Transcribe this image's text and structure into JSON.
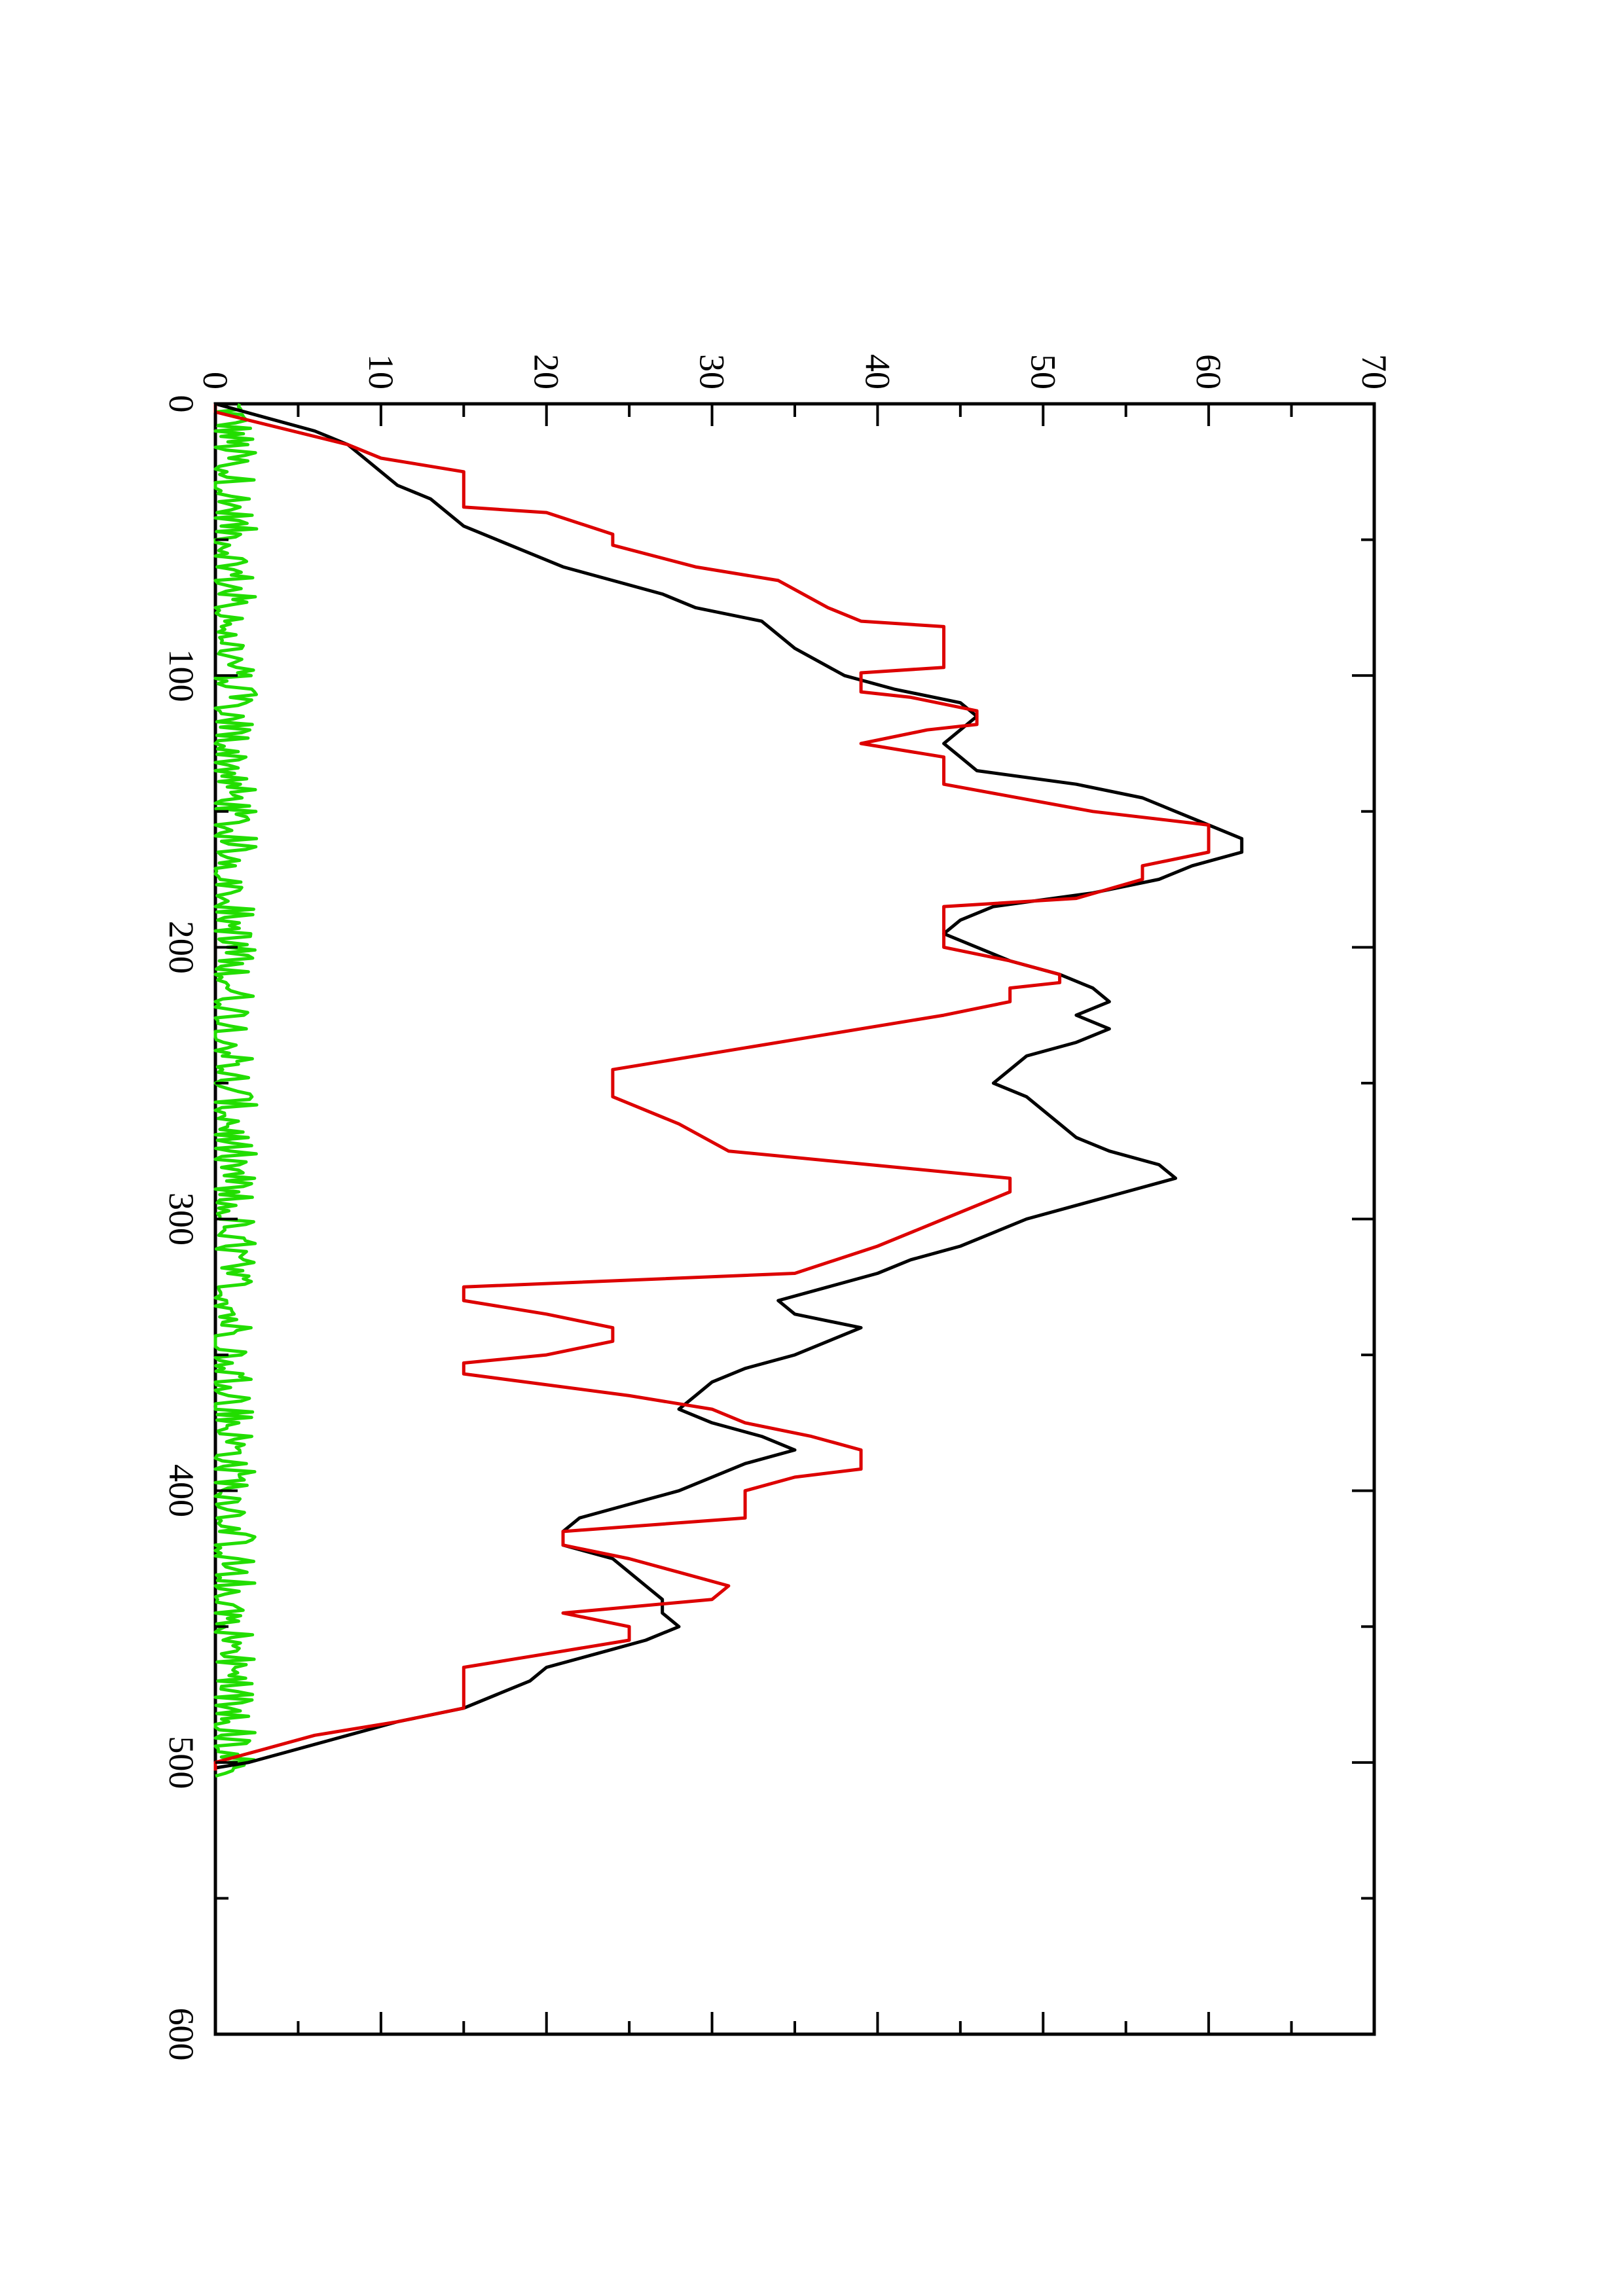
{
  "chart_data": {
    "type": "line",
    "orientation": "rotated-90-counterclockwise",
    "title": "",
    "xlabel": "",
    "ylabel": "",
    "xlim": [
      0,
      600
    ],
    "ylim": [
      0,
      70
    ],
    "x_ticks": [
      0,
      100,
      200,
      300,
      400,
      500,
      600
    ],
    "x_tick_labels": [
      "0",
      "100",
      "200",
      "300",
      "400",
      "500",
      "600"
    ],
    "x_minor_ticks": [
      50,
      150,
      250,
      350,
      450,
      550
    ],
    "y_ticks": [
      0,
      10,
      20,
      30,
      40,
      50,
      60,
      70
    ],
    "y_tick_labels": [
      "0",
      "10",
      "20",
      "30",
      "40",
      "50",
      "60",
      "70"
    ],
    "y_minor_ticks": [
      5,
      15,
      25,
      35,
      45,
      55,
      65
    ],
    "grid": false,
    "legend": "none",
    "series": [
      {
        "color": "#000000",
        "style": "smooth",
        "points": [
          [
            0,
            0
          ],
          [
            5,
            3
          ],
          [
            10,
            6
          ],
          [
            15,
            8
          ],
          [
            20,
            9
          ],
          [
            25,
            10
          ],
          [
            30,
            11
          ],
          [
            35,
            13
          ],
          [
            40,
            14
          ],
          [
            45,
            15
          ],
          [
            50,
            17
          ],
          [
            55,
            19
          ],
          [
            60,
            21
          ],
          [
            65,
            24
          ],
          [
            70,
            27
          ],
          [
            75,
            29
          ],
          [
            80,
            33
          ],
          [
            90,
            35
          ],
          [
            100,
            38
          ],
          [
            105,
            41
          ],
          [
            110,
            45
          ],
          [
            115,
            46
          ],
          [
            120,
            45
          ],
          [
            125,
            44
          ],
          [
            130,
            45
          ],
          [
            135,
            46
          ],
          [
            140,
            52
          ],
          [
            145,
            56
          ],
          [
            150,
            58
          ],
          [
            155,
            60
          ],
          [
            160,
            62
          ],
          [
            165,
            62
          ],
          [
            170,
            59
          ],
          [
            175,
            57
          ],
          [
            180,
            53
          ],
          [
            185,
            47
          ],
          [
            190,
            45
          ],
          [
            195,
            44
          ],
          [
            200,
            46
          ],
          [
            205,
            48
          ],
          [
            210,
            51
          ],
          [
            215,
            53
          ],
          [
            220,
            54
          ],
          [
            225,
            52
          ],
          [
            230,
            54
          ],
          [
            235,
            52
          ],
          [
            240,
            49
          ],
          [
            245,
            48
          ],
          [
            250,
            47
          ],
          [
            255,
            49
          ],
          [
            260,
            50
          ],
          [
            265,
            51
          ],
          [
            270,
            52
          ],
          [
            275,
            54
          ],
          [
            280,
            57
          ],
          [
            285,
            58
          ],
          [
            290,
            55
          ],
          [
            295,
            52
          ],
          [
            300,
            49
          ],
          [
            305,
            47
          ],
          [
            310,
            45
          ],
          [
            315,
            42
          ],
          [
            320,
            40
          ],
          [
            325,
            37
          ],
          [
            330,
            34
          ],
          [
            335,
            35
          ],
          [
            340,
            39
          ],
          [
            345,
            37
          ],
          [
            350,
            35
          ],
          [
            355,
            32
          ],
          [
            360,
            30
          ],
          [
            365,
            29
          ],
          [
            370,
            28
          ],
          [
            375,
            30
          ],
          [
            380,
            33
          ],
          [
            385,
            35
          ],
          [
            390,
            32
          ],
          [
            395,
            30
          ],
          [
            400,
            28
          ],
          [
            405,
            25
          ],
          [
            410,
            22
          ],
          [
            415,
            21
          ],
          [
            420,
            21
          ],
          [
            425,
            24
          ],
          [
            430,
            25
          ],
          [
            435,
            26
          ],
          [
            440,
            27
          ],
          [
            445,
            27
          ],
          [
            450,
            28
          ],
          [
            455,
            26
          ],
          [
            460,
            23
          ],
          [
            465,
            20
          ],
          [
            470,
            19
          ],
          [
            475,
            17
          ],
          [
            480,
            15
          ],
          [
            485,
            11
          ],
          [
            490,
            8
          ],
          [
            495,
            5
          ],
          [
            500,
            2
          ],
          [
            502,
            0
          ]
        ]
      },
      {
        "color": "#dd0000",
        "style": "staircase",
        "points": [
          [
            0,
            0
          ],
          [
            3,
            0
          ],
          [
            15,
            8
          ],
          [
            20,
            10
          ],
          [
            25,
            15
          ],
          [
            38,
            15
          ],
          [
            40,
            20
          ],
          [
            48,
            24
          ],
          [
            52,
            24
          ],
          [
            60,
            29
          ],
          [
            65,
            34
          ],
          [
            75,
            37
          ],
          [
            80,
            39
          ],
          [
            82,
            44
          ],
          [
            97,
            44
          ],
          [
            99,
            39
          ],
          [
            106,
            39
          ],
          [
            108,
            42
          ],
          [
            113,
            46
          ],
          [
            118,
            46
          ],
          [
            120,
            43
          ],
          [
            125,
            39
          ],
          [
            130,
            44
          ],
          [
            140,
            44
          ],
          [
            150,
            53
          ],
          [
            155,
            60
          ],
          [
            165,
            60
          ],
          [
            170,
            56
          ],
          [
            175,
            56
          ],
          [
            182,
            52
          ],
          [
            185,
            44
          ],
          [
            200,
            44
          ],
          [
            205,
            48
          ],
          [
            210,
            51
          ],
          [
            213,
            51
          ],
          [
            215,
            48
          ],
          [
            220,
            48
          ],
          [
            225,
            44
          ],
          [
            245,
            24
          ],
          [
            255,
            24
          ],
          [
            265,
            28
          ],
          [
            275,
            31
          ],
          [
            285,
            48
          ],
          [
            290,
            48
          ],
          [
            300,
            44
          ],
          [
            310,
            40
          ],
          [
            320,
            35
          ],
          [
            325,
            15
          ],
          [
            330,
            15
          ],
          [
            335,
            20
          ],
          [
            340,
            24
          ],
          [
            345,
            24
          ],
          [
            350,
            20
          ],
          [
            353,
            15
          ],
          [
            357,
            15
          ],
          [
            365,
            25
          ],
          [
            370,
            30
          ],
          [
            375,
            32
          ],
          [
            380,
            36
          ],
          [
            385,
            39
          ],
          [
            392,
            39
          ],
          [
            395,
            35
          ],
          [
            400,
            32
          ],
          [
            410,
            32
          ],
          [
            415,
            21
          ],
          [
            420,
            21
          ],
          [
            425,
            25
          ],
          [
            430,
            28
          ],
          [
            435,
            31
          ],
          [
            440,
            30
          ],
          [
            445,
            21
          ],
          [
            450,
            25
          ],
          [
            455,
            25
          ],
          [
            460,
            20
          ],
          [
            465,
            15
          ],
          [
            478,
            15
          ],
          [
            480,
            15
          ],
          [
            485,
            11
          ],
          [
            490,
            6
          ],
          [
            495,
            3
          ],
          [
            500,
            0
          ],
          [
            503,
            0
          ]
        ]
      },
      {
        "color": "#22dd00",
        "style": "noisy",
        "mean": 1.0,
        "min": 0,
        "max": 2.5,
        "x_range": [
          0,
          505
        ]
      }
    ]
  }
}
